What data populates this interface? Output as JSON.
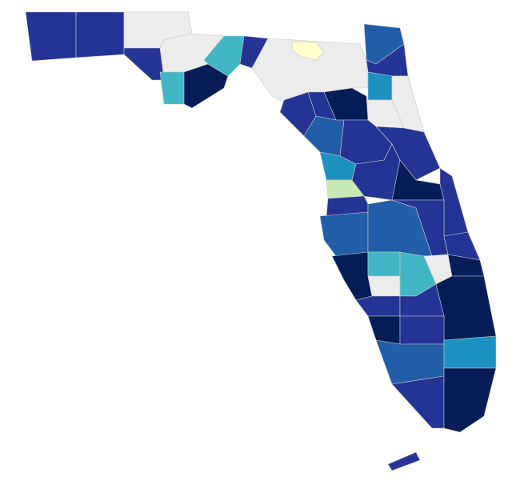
{
  "map": {
    "type": "choropleth",
    "regions": [
      {
        "color": "#253494"
      },
      {
        "color": "#253494"
      },
      {
        "color": "#ececec"
      },
      {
        "color": "#253494"
      },
      {
        "color": "#ececec"
      },
      {
        "color": "#41b6c4"
      },
      {
        "color": "#081d58"
      },
      {
        "color": "#41b6c4"
      },
      {
        "color": "#253494"
      },
      {
        "color": "#ececec"
      },
      {
        "color": "#ffffcc"
      },
      {
        "color": "#225ea8"
      },
      {
        "color": "#253494"
      },
      {
        "color": "#1d91c0"
      },
      {
        "color": "#ececec"
      },
      {
        "color": "#ececec"
      },
      {
        "color": "#253494"
      },
      {
        "color": "#081d58"
      },
      {
        "color": "#253494"
      },
      {
        "color": "#225ea8"
      },
      {
        "color": "#253494"
      },
      {
        "color": "#253494"
      },
      {
        "color": "#1d91c0"
      },
      {
        "color": "#c7e9b4"
      },
      {
        "color": "#253494"
      },
      {
        "color": "#081d58"
      },
      {
        "color": "#253494"
      },
      {
        "color": "#253494"
      },
      {
        "color": "#225ea8"
      },
      {
        "color": "#225ea8"
      },
      {
        "color": "#253494"
      },
      {
        "color": "#253494"
      },
      {
        "color": "#081d58"
      },
      {
        "color": "#41b6c4"
      },
      {
        "color": "#ececec"
      },
      {
        "color": "#41b6c4"
      },
      {
        "color": "#ececec"
      },
      {
        "color": "#081d58"
      },
      {
        "color": "#253494"
      },
      {
        "color": "#253494"
      },
      {
        "color": "#081d58"
      },
      {
        "color": "#081d58"
      },
      {
        "color": "#253494"
      },
      {
        "color": "#225ea8"
      },
      {
        "color": "#1d91c0"
      },
      {
        "color": "#253494"
      },
      {
        "color": "#081d58"
      },
      {
        "color": "#253494"
      }
    ]
  }
}
